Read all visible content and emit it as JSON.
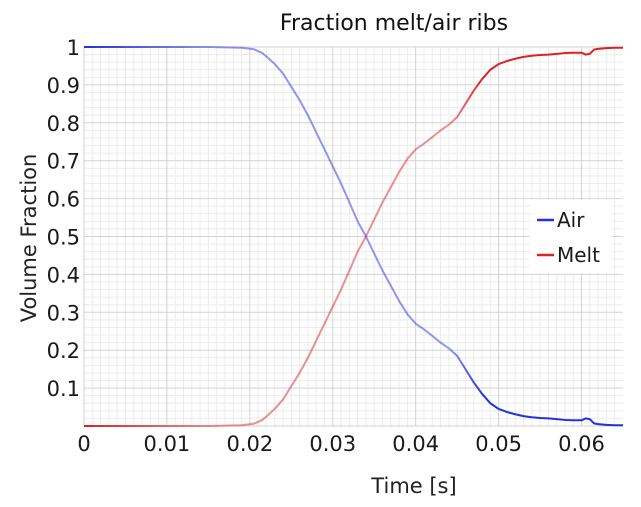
{
  "chart_data": {
    "type": "line",
    "title": "Fraction melt/air ribs",
    "xlabel": "Time [s]",
    "ylabel": "Volume Fraction",
    "xlim": [
      0,
      0.065
    ],
    "ylim": [
      0,
      1
    ],
    "grid": true,
    "legend_position": "right",
    "x_ticks": [
      0,
      0.01,
      0.02,
      0.03,
      0.04,
      0.05,
      0.06
    ],
    "x_tick_labels": [
      "0",
      "0.01",
      "0.02",
      "0.03",
      "0.04",
      "0.05",
      "0.06"
    ],
    "y_ticks": [
      0.1,
      0.2,
      0.3,
      0.4,
      0.5,
      0.6,
      0.7,
      0.8,
      0.9,
      1
    ],
    "y_tick_labels": [
      "0.1",
      "0.2",
      "0.3",
      "0.4",
      "0.5",
      "0.6",
      "0.7",
      "0.8",
      "0.9",
      "1"
    ],
    "series": [
      {
        "name": "Air",
        "color": "#2233dd",
        "x": [
          0,
          0.005,
          0.01,
          0.015,
          0.019,
          0.0205,
          0.0215,
          0.022,
          0.023,
          0.024,
          0.025,
          0.026,
          0.027,
          0.028,
          0.029,
          0.03,
          0.031,
          0.032,
          0.033,
          0.034,
          0.035,
          0.036,
          0.037,
          0.038,
          0.039,
          0.04,
          0.041,
          0.042,
          0.043,
          0.044,
          0.045,
          0.046,
          0.047,
          0.048,
          0.049,
          0.05,
          0.051,
          0.052,
          0.053,
          0.054,
          0.055,
          0.056,
          0.057,
          0.058,
          0.059,
          0.06,
          0.0605,
          0.061,
          0.0615,
          0.062,
          0.063,
          0.064,
          0.065
        ],
        "y": [
          1,
          1,
          1,
          1,
          0.998,
          0.994,
          0.984,
          0.975,
          0.955,
          0.93,
          0.895,
          0.86,
          0.82,
          0.775,
          0.73,
          0.685,
          0.64,
          0.59,
          0.54,
          0.5,
          0.455,
          0.41,
          0.37,
          0.33,
          0.295,
          0.27,
          0.255,
          0.238,
          0.22,
          0.205,
          0.185,
          0.15,
          0.115,
          0.085,
          0.06,
          0.045,
          0.037,
          0.031,
          0.026,
          0.023,
          0.021,
          0.02,
          0.018,
          0.016,
          0.015,
          0.015,
          0.02,
          0.018,
          0.007,
          0.005,
          0.003,
          0.002,
          0.002
        ]
      },
      {
        "name": "Melt",
        "color": "#dd2222",
        "x": [
          0,
          0.005,
          0.01,
          0.015,
          0.019,
          0.0205,
          0.0215,
          0.022,
          0.023,
          0.024,
          0.025,
          0.026,
          0.027,
          0.028,
          0.029,
          0.03,
          0.031,
          0.032,
          0.033,
          0.034,
          0.035,
          0.036,
          0.037,
          0.038,
          0.039,
          0.04,
          0.041,
          0.042,
          0.043,
          0.044,
          0.045,
          0.046,
          0.047,
          0.048,
          0.049,
          0.05,
          0.051,
          0.052,
          0.053,
          0.054,
          0.055,
          0.056,
          0.057,
          0.058,
          0.059,
          0.06,
          0.0605,
          0.061,
          0.0615,
          0.062,
          0.063,
          0.064,
          0.065
        ],
        "y": [
          0,
          0,
          0,
          0,
          0.002,
          0.006,
          0.016,
          0.025,
          0.045,
          0.07,
          0.105,
          0.14,
          0.18,
          0.225,
          0.27,
          0.315,
          0.36,
          0.41,
          0.46,
          0.5,
          0.545,
          0.59,
          0.63,
          0.67,
          0.705,
          0.73,
          0.745,
          0.762,
          0.78,
          0.795,
          0.815,
          0.85,
          0.885,
          0.915,
          0.94,
          0.955,
          0.963,
          0.969,
          0.974,
          0.977,
          0.979,
          0.98,
          0.982,
          0.984,
          0.985,
          0.985,
          0.98,
          0.982,
          0.993,
          0.995,
          0.997,
          0.998,
          0.998
        ]
      }
    ]
  }
}
